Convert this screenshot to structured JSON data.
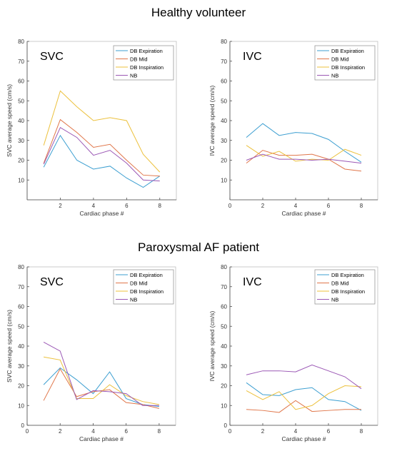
{
  "sections": [
    {
      "title": "Healthy volunteer"
    },
    {
      "title": "Paroxysmal AF patient"
    }
  ],
  "colors": {
    "DB Expiration": "#3d9fd1",
    "DB Mid": "#e0764a",
    "DB Inspiration": "#ecc13d",
    "NB": "#9b58b5",
    "axis": "#4d4d4d",
    "frame": "#bfbfbf"
  },
  "chart_data": [
    {
      "type": "line",
      "section": "Healthy volunteer",
      "annotation": "SVC",
      "xlabel": "Cardiac phase #",
      "ylabel": "SVC average speed (cm/s)",
      "xlim": [
        0,
        9
      ],
      "ylim": [
        0,
        80
      ],
      "xticks": [
        2,
        4,
        6,
        8
      ],
      "yticks": [
        10,
        20,
        30,
        40,
        50,
        60,
        70,
        80
      ],
      "legend": "top-right",
      "x": [
        1,
        2,
        3,
        4,
        5,
        6,
        7,
        8
      ],
      "series": [
        {
          "name": "DB Expiration",
          "values": [
            16.5,
            32.5,
            20,
            15.5,
            17,
            11,
            6.3,
            12
          ]
        },
        {
          "name": "DB Mid",
          "values": [
            18.5,
            40.5,
            34,
            26.5,
            28,
            20,
            12.5,
            12
          ]
        },
        {
          "name": "DB Inspiration",
          "values": [
            27.5,
            55,
            47,
            40,
            41.5,
            40,
            23,
            14
          ]
        },
        {
          "name": "NB",
          "values": [
            18,
            36.5,
            31.5,
            22.5,
            25,
            18.5,
            10,
            9.5
          ]
        }
      ]
    },
    {
      "type": "line",
      "section": "Healthy volunteer",
      "annotation": "IVC",
      "xlabel": "Cardiac phase #",
      "ylabel": "IVC average speed (cm/s)",
      "xlim": [
        0,
        9
      ],
      "ylim": [
        0,
        80
      ],
      "xticks": [
        0,
        2,
        4,
        6,
        8
      ],
      "yticks": [
        10,
        20,
        30,
        40,
        50,
        60,
        70,
        80
      ],
      "legend": "top-right",
      "x": [
        1,
        2,
        3,
        4,
        5,
        6,
        7,
        8
      ],
      "series": [
        {
          "name": "DB Expiration",
          "values": [
            31.5,
            38.5,
            32.5,
            34,
            33.5,
            30.5,
            24.5,
            19
          ]
        },
        {
          "name": "DB Mid",
          "values": [
            18.5,
            25,
            22.5,
            22.5,
            23,
            20.5,
            15.5,
            14.5
          ]
        },
        {
          "name": "DB Inspiration",
          "values": [
            27.5,
            22,
            24.5,
            19.5,
            20.5,
            20,
            25.5,
            22.5
          ]
        },
        {
          "name": "NB",
          "values": [
            20,
            23,
            20.5,
            20.5,
            20,
            20.5,
            19.5,
            18.5
          ]
        }
      ]
    },
    {
      "type": "line",
      "section": "Paroxysmal AF patient",
      "annotation": "SVC",
      "xlabel": "Cardiac phase #",
      "ylabel": "SVC average speed (cm/s)",
      "xlim": [
        0,
        9
      ],
      "ylim": [
        0,
        80
      ],
      "xticks": [
        0,
        2,
        4,
        6,
        8
      ],
      "yticks": [
        0,
        10,
        20,
        30,
        40,
        50,
        60,
        70,
        80
      ],
      "legend": "top-right",
      "x": [
        1,
        2,
        3,
        4,
        5,
        6,
        7,
        8
      ],
      "series": [
        {
          "name": "DB Expiration",
          "values": [
            20.5,
            29,
            23,
            16,
            27,
            13.5,
            10.5,
            9.5
          ]
        },
        {
          "name": "DB Mid",
          "values": [
            12.5,
            28.5,
            14.5,
            17,
            18,
            11.5,
            10.5,
            8.5
          ]
        },
        {
          "name": "DB Inspiration",
          "values": [
            34.5,
            33,
            13.5,
            13.5,
            20.5,
            15,
            12,
            10.5
          ]
        },
        {
          "name": "NB",
          "values": [
            42,
            37.5,
            13,
            17.5,
            17,
            16,
            10,
            10
          ]
        }
      ]
    },
    {
      "type": "line",
      "section": "Paroxysmal AF patient",
      "annotation": "IVC",
      "xlabel": "Cardiac phase #",
      "ylabel": "IVC average speed (cm/s)",
      "xlim": [
        0,
        9
      ],
      "ylim": [
        0,
        80
      ],
      "xticks": [
        0,
        2,
        4,
        6,
        8
      ],
      "yticks": [
        0,
        10,
        20,
        30,
        40,
        50,
        60,
        70,
        80
      ],
      "legend": "top-right",
      "x": [
        1,
        2,
        3,
        4,
        5,
        6,
        7,
        8
      ],
      "series": [
        {
          "name": "DB Expiration",
          "values": [
            21.5,
            15.5,
            15,
            18,
            19,
            13,
            12,
            7.5
          ]
        },
        {
          "name": "DB Mid",
          "values": [
            8,
            7.5,
            6.5,
            12.5,
            7,
            7.5,
            8,
            8
          ]
        },
        {
          "name": "DB Inspiration",
          "values": [
            17.5,
            13,
            17,
            8,
            10,
            16,
            20,
            19.5
          ]
        },
        {
          "name": "NB",
          "values": [
            25.5,
            27.5,
            27.5,
            27,
            30.5,
            27.5,
            24.5,
            18.5
          ]
        }
      ]
    }
  ]
}
